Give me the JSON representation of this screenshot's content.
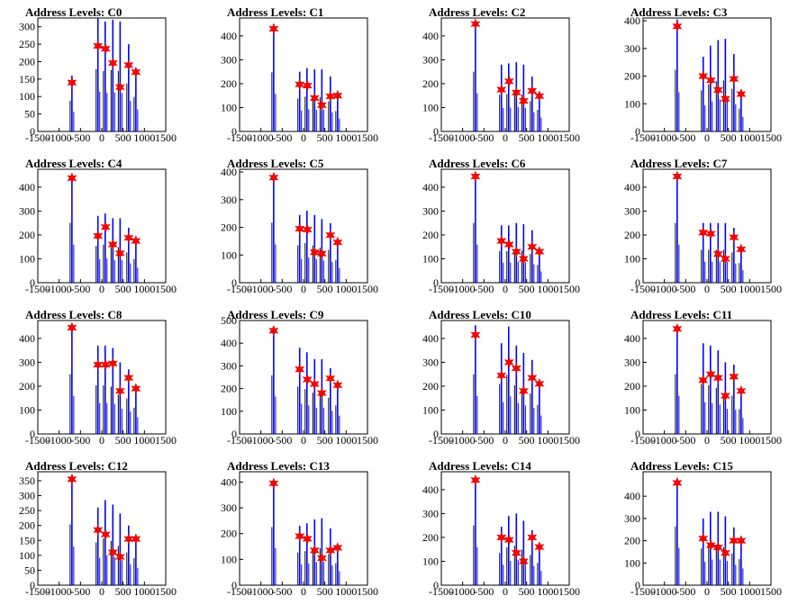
{
  "chart_data": [
    {
      "type": "bar",
      "title": "Address Levels: C0",
      "ylim": [
        0,
        325
      ],
      "yticks": [
        0,
        50,
        100,
        150,
        200,
        250,
        300
      ],
      "star_x": [
        -700,
        -90,
        90,
        260,
        430,
        630,
        800
      ],
      "star_y": [
        140,
        245,
        237,
        196,
        127,
        190,
        170
      ],
      "spike_x": [
        -700,
        -90,
        80,
        260,
        430,
        630,
        800
      ],
      "spike_y": [
        160,
        325,
        315,
        320,
        315,
        250,
        180
      ]
    },
    {
      "type": "bar",
      "title": "Address Levels: C1",
      "ylim": [
        0,
        475
      ],
      "yticks": [
        0,
        100,
        200,
        300,
        400
      ],
      "star_x": [
        -700,
        -90,
        90,
        260,
        430,
        630,
        800
      ],
      "star_y": [
        430,
        197,
        192,
        140,
        110,
        147,
        150
      ],
      "spike_x": [
        -700,
        -90,
        80,
        260,
        430,
        630,
        800
      ],
      "spike_y": [
        450,
        250,
        265,
        260,
        260,
        230,
        155
      ]
    },
    {
      "type": "bar",
      "title": "Address Levels: C2",
      "ylim": [
        0,
        475
      ],
      "yticks": [
        0,
        100,
        200,
        300,
        400
      ],
      "star_x": [
        -700,
        -90,
        90,
        260,
        430,
        630,
        800
      ],
      "star_y": [
        450,
        175,
        210,
        163,
        128,
        170,
        148
      ],
      "spike_x": [
        -700,
        -90,
        80,
        260,
        430,
        630,
        800
      ],
      "spike_y": [
        455,
        280,
        285,
        290,
        280,
        230,
        165
      ]
    },
    {
      "type": "bar",
      "title": "Address Levels: C3",
      "ylim": [
        0,
        410
      ],
      "yticks": [
        0,
        100,
        200,
        300,
        400
      ],
      "star_x": [
        -700,
        -90,
        90,
        260,
        430,
        630,
        800
      ],
      "star_y": [
        380,
        200,
        185,
        150,
        118,
        190,
        135
      ],
      "spike_x": [
        -700,
        -90,
        80,
        260,
        430,
        630,
        800
      ],
      "spike_y": [
        405,
        270,
        310,
        330,
        335,
        280,
        150
      ]
    },
    {
      "type": "bar",
      "title": "Address Levels: C4",
      "ylim": [
        0,
        475
      ],
      "yticks": [
        0,
        100,
        200,
        300,
        400
      ],
      "star_x": [
        -700,
        -90,
        90,
        260,
        430,
        630,
        800
      ],
      "star_y": [
        438,
        196,
        233,
        160,
        123,
        188,
        175
      ],
      "spike_x": [
        -700,
        -90,
        80,
        260,
        430,
        630,
        800
      ],
      "spike_y": [
        455,
        280,
        290,
        270,
        270,
        230,
        180
      ]
    },
    {
      "type": "bar",
      "title": "Address Levels: C5",
      "ylim": [
        0,
        410
      ],
      "yticks": [
        0,
        100,
        200,
        300,
        400
      ],
      "star_x": [
        -700,
        -90,
        90,
        260,
        430,
        630,
        800
      ],
      "star_y": [
        380,
        195,
        192,
        110,
        105,
        172,
        146
      ],
      "spike_x": [
        -700,
        -90,
        80,
        260,
        430,
        630,
        800
      ],
      "spike_y": [
        395,
        245,
        260,
        245,
        230,
        215,
        150
      ]
    },
    {
      "type": "bar",
      "title": "Address Levels: C6",
      "ylim": [
        0,
        475
      ],
      "yticks": [
        0,
        100,
        200,
        300,
        400
      ],
      "star_x": [
        -700,
        -90,
        90,
        260,
        430,
        630,
        800
      ],
      "star_y": [
        445,
        175,
        160,
        130,
        100,
        150,
        130
      ],
      "spike_x": [
        -700,
        -90,
        80,
        260,
        430,
        630,
        800
      ],
      "spike_y": [
        455,
        240,
        240,
        250,
        245,
        220,
        135
      ]
    },
    {
      "type": "bar",
      "title": "Address Levels: C7",
      "ylim": [
        0,
        475
      ],
      "yticks": [
        0,
        100,
        200,
        300,
        400
      ],
      "star_x": [
        -700,
        -90,
        90,
        260,
        430,
        630,
        800
      ],
      "star_y": [
        445,
        210,
        205,
        120,
        100,
        190,
        140
      ],
      "spike_x": [
        -700,
        -90,
        80,
        260,
        430,
        630,
        800
      ],
      "spike_y": [
        455,
        250,
        250,
        250,
        250,
        230,
        150
      ]
    },
    {
      "type": "bar",
      "title": "Address Levels: C8",
      "ylim": [
        0,
        475
      ],
      "yticks": [
        0,
        100,
        200,
        300,
        400
      ],
      "star_x": [
        -700,
        -90,
        90,
        260,
        430,
        630,
        800
      ],
      "star_y": [
        445,
        290,
        290,
        295,
        180,
        235,
        190
      ],
      "spike_x": [
        -700,
        -90,
        80,
        260,
        430,
        630,
        800
      ],
      "spike_y": [
        455,
        370,
        370,
        360,
        300,
        270,
        200
      ]
    },
    {
      "type": "bar",
      "title": "Address Levels: C9",
      "ylim": [
        0,
        500
      ],
      "yticks": [
        0,
        100,
        200,
        300,
        400,
        500
      ],
      "star_x": [
        -700,
        -90,
        90,
        260,
        430,
        630,
        800
      ],
      "star_y": [
        455,
        285,
        240,
        220,
        180,
        245,
        215
      ],
      "spike_x": [
        -700,
        -90,
        80,
        260,
        430,
        630,
        800
      ],
      "spike_y": [
        470,
        380,
        360,
        330,
        330,
        290,
        230
      ]
    },
    {
      "type": "bar",
      "title": "Address Levels: C10",
      "ylim": [
        0,
        475
      ],
      "yticks": [
        0,
        100,
        200,
        300,
        400
      ],
      "star_x": [
        -700,
        -90,
        90,
        260,
        430,
        630,
        800
      ],
      "star_y": [
        415,
        245,
        300,
        275,
        180,
        235,
        210
      ],
      "spike_x": [
        -700,
        -90,
        80,
        260,
        430,
        630,
        800
      ],
      "spike_y": [
        455,
        380,
        450,
        370,
        340,
        310,
        220
      ]
    },
    {
      "type": "bar",
      "title": "Address Levels: C11",
      "ylim": [
        0,
        475
      ],
      "yticks": [
        0,
        100,
        200,
        300,
        400
      ],
      "star_x": [
        -700,
        -90,
        90,
        260,
        430,
        630,
        800
      ],
      "star_y": [
        440,
        225,
        250,
        235,
        160,
        240,
        180
      ],
      "spike_x": [
        -700,
        -90,
        80,
        260,
        430,
        630,
        800
      ],
      "spike_y": [
        455,
        380,
        370,
        350,
        300,
        290,
        190
      ]
    },
    {
      "type": "bar",
      "title": "Address Levels: C12",
      "ylim": [
        0,
        380
      ],
      "yticks": [
        0,
        50,
        100,
        150,
        200,
        250,
        300,
        350
      ],
      "star_x": [
        -700,
        -90,
        90,
        260,
        430,
        630,
        800
      ],
      "star_y": [
        355,
        185,
        170,
        110,
        95,
        155,
        155
      ],
      "spike_x": [
        -700,
        -90,
        80,
        260,
        430,
        630,
        800
      ],
      "spike_y": [
        370,
        260,
        285,
        270,
        240,
        200,
        165
      ]
    },
    {
      "type": "bar",
      "title": "Address Levels: C13",
      "ylim": [
        0,
        440
      ],
      "yticks": [
        0,
        100,
        200,
        300,
        400
      ],
      "star_x": [
        -700,
        -90,
        90,
        260,
        430,
        630,
        800
      ],
      "star_y": [
        395,
        190,
        180,
        135,
        105,
        135,
        145
      ],
      "spike_x": [
        -700,
        -90,
        80,
        260,
        430,
        630,
        800
      ],
      "spike_y": [
        410,
        230,
        240,
        255,
        260,
        220,
        155
      ]
    },
    {
      "type": "bar",
      "title": "Address Levels: C14",
      "ylim": [
        0,
        475
      ],
      "yticks": [
        0,
        100,
        200,
        300,
        400
      ],
      "star_x": [
        -700,
        -90,
        90,
        260,
        430,
        630,
        800
      ],
      "star_y": [
        440,
        200,
        190,
        135,
        100,
        200,
        160
      ],
      "spike_x": [
        -700,
        -90,
        80,
        260,
        430,
        630,
        800
      ],
      "spike_y": [
        455,
        245,
        290,
        300,
        270,
        230,
        170
      ]
    },
    {
      "type": "bar",
      "title": "Address Levels: C15",
      "ylim": [
        0,
        510
      ],
      "yticks": [
        0,
        100,
        200,
        300,
        400
      ],
      "star_x": [
        -700,
        -90,
        90,
        260,
        430,
        630,
        800
      ],
      "star_y": [
        460,
        210,
        180,
        170,
        145,
        200,
        200
      ],
      "spike_x": [
        -700,
        -90,
        80,
        260,
        430,
        630,
        800
      ],
      "spike_y": [
        480,
        300,
        330,
        330,
        310,
        260,
        215
      ]
    }
  ],
  "xlim": [
    -1500,
    1500
  ],
  "xticks": [
    -1500,
    -1000,
    -500,
    0,
    500,
    1000,
    1500
  ],
  "colors": {
    "bars": "#0000ff",
    "black_bars": "#000000",
    "stars": "#ff0000",
    "star_edge": "#cc0000"
  }
}
